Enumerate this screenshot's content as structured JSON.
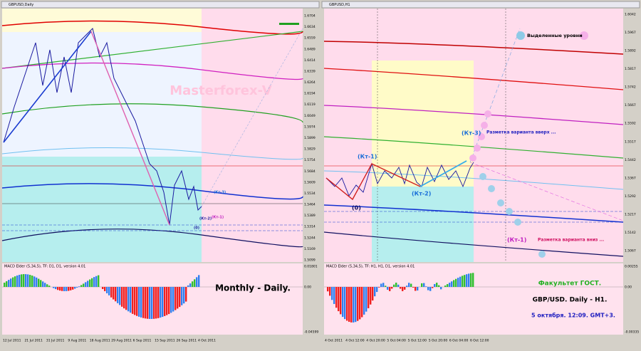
{
  "left": {
    "title": "GBPUSD,Daily",
    "watermark": "Masterforex-V",
    "price_labels": [
      "1.6704",
      "1.6634",
      "1.6559",
      "1.6489",
      "1.6414",
      "1.6339",
      "1.6264",
      "1.6194",
      "1.6119",
      "1.6049",
      "1.5974",
      "1.5899",
      "1.5829",
      "1.5754",
      "1.5684",
      "1.5609",
      "1.5534",
      "1.5464",
      "1.5389",
      "1.5314",
      "1.5244",
      "1.5169",
      "1.5099"
    ],
    "macd_title": "MACD Elder (5,34,5), TF: D1, D1, version 4.01",
    "macd_labels": [
      "0.01801",
      "0.00",
      "-0.04599"
    ],
    "dates": [
      "12 Jul 2011",
      "21 Jul 2011",
      "31 Jul 2011",
      "9 Aug 2011",
      "18 Aug 2011",
      "29 Aug 2011",
      "6 Sep 2011",
      "15 Sep 2011",
      "26 Sep 2011",
      "4 Oct 2011"
    ],
    "annotation": "Monthly -  Daily.",
    "wave_labels": [
      "(Кт-3)",
      "(Кт-1)",
      "(Кт-2)",
      "(0)"
    ]
  },
  "right": {
    "title": "GBPUSD,H1",
    "price_labels": [
      "1.6042",
      "1.5967",
      "1.5892",
      "1.5817",
      "1.5742",
      "1.5667",
      "1.5592",
      "1.5517",
      "1.5442",
      "1.5367",
      "1.5292",
      "1.5217",
      "1.5142",
      "1.5067"
    ],
    "macd_title": "MACD Elder (5,34,5), TF: H1, H1, D1, version 4.01",
    "macd_labels": [
      "0.00255",
      "0.00",
      "-0.00335"
    ],
    "dates": [
      "4 Oct 2011",
      "4 Oct 12:00",
      "4 Oct 20:00",
      "5 Oct 04:00",
      "5 Oct 12:00",
      "5 Oct 20:00",
      "6 Oct 04:00",
      "6 Oct 12:00"
    ],
    "legend": "Выделенные уровни",
    "up_note": "Разметка варианта вверх ...",
    "down_note": "Разметка варианта вниз ...",
    "wave_labels": [
      "(Кт-1)",
      "(Кт-2)",
      "(Кт-3)",
      "(0)",
      "(Кт-1)"
    ],
    "caption": [
      "Факультет ГОСТ.",
      "GBP/USD. Daily - H1.",
      "5 октября. 12:09. GMT+3."
    ]
  }
}
